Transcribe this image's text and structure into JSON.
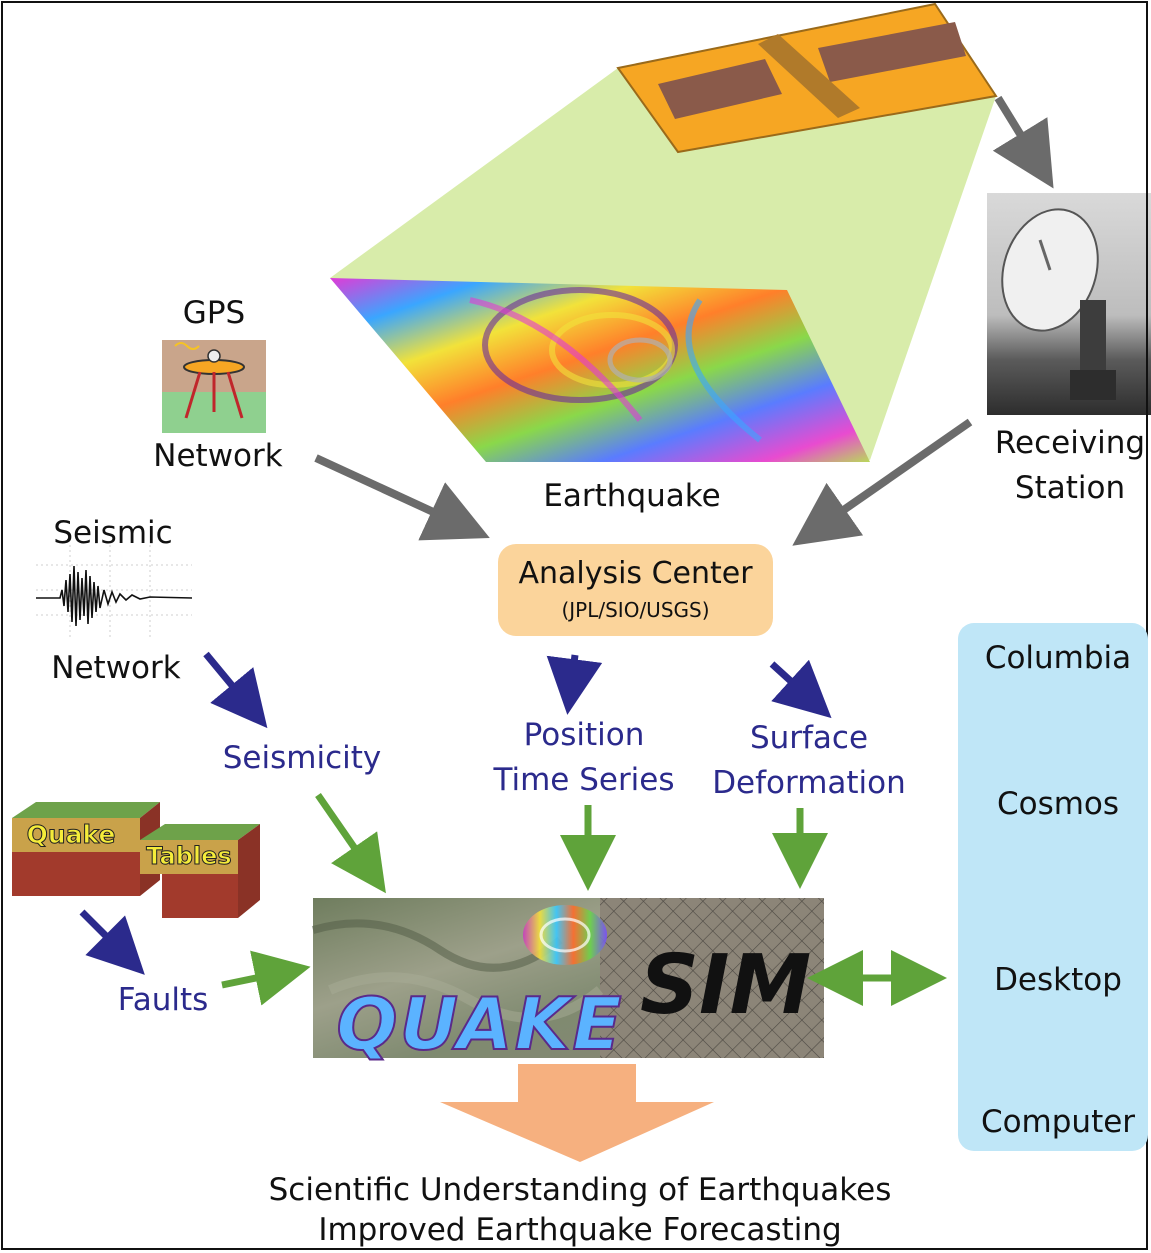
{
  "labels": {
    "gps": "GPS",
    "gps_network": "Network",
    "earthquake": "Earthquake",
    "receiving_1": "Receiving",
    "receiving_2": "Station",
    "seismic": "Seismic",
    "seismic_network": "Network",
    "seismicity": "Seismicity",
    "position_1": "Position",
    "position_2": "Time Series",
    "surface_1": "Surface",
    "surface_2": "Deformation",
    "faults": "Faults",
    "quake": "Quake",
    "tables": "Tables",
    "quakesim_left": "QUAKE",
    "quakesim_right": "SIM"
  },
  "analysis_center": {
    "title": "Analysis Center",
    "subtitle": "(JPL/SIO/USGS)"
  },
  "computers": {
    "columbia": "Columbia",
    "cosmos": "Cosmos",
    "desktop": "Desktop",
    "computer": "Computer"
  },
  "outcome": {
    "line1": "Scientific Understanding of Earthquakes",
    "line2": "Improved Earthquake Forecasting"
  },
  "colors": {
    "gray_arrow": "#6b6b6b",
    "blue_arrow": "#2b2a8c",
    "green_arrow": "#5fa33a",
    "orange_arrow": "#f6b07f",
    "analysis_box": "#fbd49b",
    "computer_panel": "#bfe6f7",
    "satellite_body": "#f6a623",
    "swath": "#d8ecaa"
  },
  "icons": [
    "satellite-icon",
    "dish-antenna-icon",
    "gps-tripod-icon",
    "seismogram-icon",
    "fault-block-icon",
    "supercomputer-room-icon",
    "server-rack-icon",
    "desktop-computer-icon"
  ]
}
